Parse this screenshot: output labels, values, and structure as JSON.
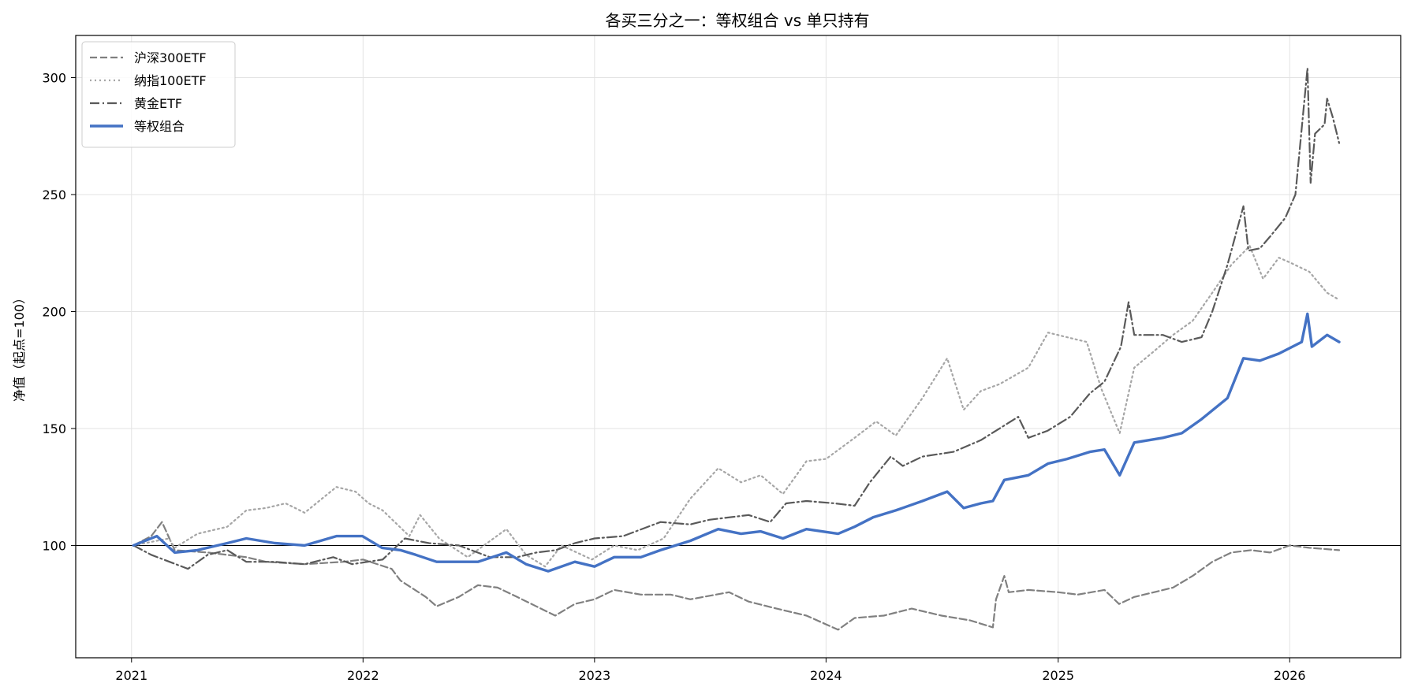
{
  "chart_data": {
    "type": "line",
    "title": "各买三分之一：等权组合 vs 单只持有",
    "ylabel": "净值（起点=100）",
    "xlabel": "",
    "xlim": [
      "2020-10-05",
      "2026-06-25"
    ],
    "ylim": [
      52,
      318
    ],
    "x_ticks": [
      "2021",
      "2022",
      "2023",
      "2024",
      "2025",
      "2026"
    ],
    "y_ticks": [
      100,
      150,
      200,
      250,
      300
    ],
    "grid": true,
    "baseline": 100,
    "legend": "top-left",
    "series": [
      {
        "name": "沪深300ETF",
        "color": "#808080",
        "style": "dashed",
        "points": [
          [
            "2021-01-04",
            100
          ],
          [
            "2021-02-01",
            104
          ],
          [
            "2021-02-18",
            110
          ],
          [
            "2021-03-10",
            98
          ],
          [
            "2021-05-01",
            97
          ],
          [
            "2021-07-01",
            95
          ],
          [
            "2021-08-01",
            93
          ],
          [
            "2021-10-01",
            92
          ],
          [
            "2021-12-01",
            93
          ],
          [
            "2022-01-01",
            94
          ],
          [
            "2022-02-15",
            90
          ],
          [
            "2022-03-01",
            85
          ],
          [
            "2022-04-10",
            78
          ],
          [
            "2022-04-27",
            74
          ],
          [
            "2022-06-01",
            78
          ],
          [
            "2022-07-01",
            83
          ],
          [
            "2022-08-01",
            82
          ],
          [
            "2022-09-01",
            78
          ],
          [
            "2022-10-01",
            74
          ],
          [
            "2022-10-31",
            70
          ],
          [
            "2022-12-01",
            75
          ],
          [
            "2023-01-01",
            77
          ],
          [
            "2023-02-01",
            81
          ],
          [
            "2023-03-15",
            79
          ],
          [
            "2023-05-01",
            79
          ],
          [
            "2023-06-01",
            77
          ],
          [
            "2023-08-01",
            80
          ],
          [
            "2023-09-01",
            76
          ],
          [
            "2023-10-15",
            73
          ],
          [
            "2023-12-01",
            70
          ],
          [
            "2024-01-20",
            64
          ],
          [
            "2024-02-15",
            69
          ],
          [
            "2024-04-01",
            70
          ],
          [
            "2024-05-15",
            73
          ],
          [
            "2024-07-01",
            70
          ],
          [
            "2024-08-15",
            68
          ],
          [
            "2024-09-20",
            65
          ],
          [
            "2024-09-25",
            77
          ],
          [
            "2024-10-08",
            87
          ],
          [
            "2024-10-15",
            80
          ],
          [
            "2024-11-15",
            81
          ],
          [
            "2025-01-01",
            80
          ],
          [
            "2025-02-01",
            79
          ],
          [
            "2025-03-15",
            81
          ],
          [
            "2025-04-07",
            75
          ],
          [
            "2025-05-01",
            78
          ],
          [
            "2025-06-01",
            80
          ],
          [
            "2025-07-01",
            82
          ],
          [
            "2025-08-01",
            87
          ],
          [
            "2025-09-01",
            93
          ],
          [
            "2025-10-01",
            97
          ],
          [
            "2025-11-01",
            98
          ],
          [
            "2025-12-01",
            97
          ],
          [
            "2026-01-01",
            100
          ],
          [
            "2026-02-01",
            99
          ],
          [
            "2026-03-20",
            98
          ]
        ]
      },
      {
        "name": "纳指100ETF",
        "color": "#a6a6a6",
        "style": "dotted",
        "points": [
          [
            "2021-01-04",
            100
          ],
          [
            "2021-03-01",
            103
          ],
          [
            "2021-03-10",
            99
          ],
          [
            "2021-04-15",
            105
          ],
          [
            "2021-06-01",
            108
          ],
          [
            "2021-07-01",
            115
          ],
          [
            "2021-08-01",
            116
          ],
          [
            "2021-09-01",
            118
          ],
          [
            "2021-10-01",
            114
          ],
          [
            "2021-11-20",
            125
          ],
          [
            "2021-12-20",
            123
          ],
          [
            "2022-01-10",
            118
          ],
          [
            "2022-02-01",
            115
          ],
          [
            "2022-03-15",
            104
          ],
          [
            "2022-04-01",
            113
          ],
          [
            "2022-05-01",
            103
          ],
          [
            "2022-06-15",
            95
          ],
          [
            "2022-08-15",
            107
          ],
          [
            "2022-09-15",
            96
          ],
          [
            "2022-10-15",
            91
          ],
          [
            "2022-11-10",
            100
          ],
          [
            "2022-12-28",
            94
          ],
          [
            "2023-02-01",
            100
          ],
          [
            "2023-03-10",
            98
          ],
          [
            "2023-04-20",
            103
          ],
          [
            "2023-06-01",
            120
          ],
          [
            "2023-07-15",
            133
          ],
          [
            "2023-08-20",
            127
          ],
          [
            "2023-09-20",
            130
          ],
          [
            "2023-10-25",
            122
          ],
          [
            "2023-12-01",
            136
          ],
          [
            "2024-01-01",
            137
          ],
          [
            "2024-02-15",
            146
          ],
          [
            "2024-03-20",
            153
          ],
          [
            "2024-04-20",
            147
          ],
          [
            "2024-06-01",
            163
          ],
          [
            "2024-07-10",
            180
          ],
          [
            "2024-08-05",
            158
          ],
          [
            "2024-09-01",
            166
          ],
          [
            "2024-10-01",
            169
          ],
          [
            "2024-11-15",
            176
          ],
          [
            "2024-12-16",
            191
          ],
          [
            "2025-01-15",
            189
          ],
          [
            "2025-02-15",
            187
          ],
          [
            "2025-03-10",
            167
          ],
          [
            "2025-04-08",
            148
          ],
          [
            "2025-05-01",
            176
          ],
          [
            "2025-06-01",
            183
          ],
          [
            "2025-07-01",
            190
          ],
          [
            "2025-08-01",
            196
          ],
          [
            "2025-09-01",
            208
          ],
          [
            "2025-10-01",
            220
          ],
          [
            "2025-10-30",
            228
          ],
          [
            "2025-11-20",
            214
          ],
          [
            "2025-12-15",
            223
          ],
          [
            "2026-01-01",
            221
          ],
          [
            "2026-02-01",
            217
          ],
          [
            "2026-03-01",
            208
          ],
          [
            "2026-03-20",
            205
          ]
        ]
      },
      {
        "name": "黄金ETF",
        "color": "#595959",
        "style": "dashdot",
        "points": [
          [
            "2021-01-04",
            100
          ],
          [
            "2021-02-01",
            96
          ],
          [
            "2021-03-31",
            90
          ],
          [
            "2021-05-01",
            96
          ],
          [
            "2021-06-01",
            98
          ],
          [
            "2021-07-01",
            93
          ],
          [
            "2021-08-15",
            93
          ],
          [
            "2021-10-01",
            92
          ],
          [
            "2021-11-15",
            95
          ],
          [
            "2021-12-15",
            92
          ],
          [
            "2022-02-01",
            94
          ],
          [
            "2022-03-08",
            103
          ],
          [
            "2022-04-15",
            101
          ],
          [
            "2022-06-01",
            100
          ],
          [
            "2022-07-20",
            95
          ],
          [
            "2022-09-01",
            95
          ],
          [
            "2022-10-01",
            97
          ],
          [
            "2022-11-01",
            98
          ],
          [
            "2022-12-01",
            101
          ],
          [
            "2023-01-01",
            103
          ],
          [
            "2023-02-15",
            104
          ],
          [
            "2023-04-15",
            110
          ],
          [
            "2023-06-01",
            109
          ],
          [
            "2023-07-01",
            111
          ],
          [
            "2023-09-01",
            113
          ],
          [
            "2023-10-05",
            110
          ],
          [
            "2023-10-30",
            118
          ],
          [
            "2023-12-01",
            119
          ],
          [
            "2024-01-15",
            118
          ],
          [
            "2024-02-15",
            117
          ],
          [
            "2024-03-10",
            127
          ],
          [
            "2024-04-12",
            138
          ],
          [
            "2024-05-01",
            134
          ],
          [
            "2024-06-01",
            138
          ],
          [
            "2024-07-20",
            140
          ],
          [
            "2024-09-01",
            145
          ],
          [
            "2024-10-30",
            155
          ],
          [
            "2024-11-15",
            146
          ],
          [
            "2024-12-15",
            149
          ],
          [
            "2025-01-20",
            155
          ],
          [
            "2025-02-20",
            165
          ],
          [
            "2025-03-15",
            170
          ],
          [
            "2025-04-10",
            185
          ],
          [
            "2025-04-22",
            204
          ],
          [
            "2025-05-01",
            190
          ],
          [
            "2025-06-15",
            190
          ],
          [
            "2025-07-15",
            187
          ],
          [
            "2025-08-15",
            189
          ],
          [
            "2025-09-01",
            200
          ],
          [
            "2025-09-25",
            220
          ],
          [
            "2025-10-20",
            245
          ],
          [
            "2025-10-28",
            226
          ],
          [
            "2025-11-15",
            227
          ],
          [
            "2025-12-01",
            232
          ],
          [
            "2025-12-25",
            240
          ],
          [
            "2026-01-10",
            250
          ],
          [
            "2026-01-29",
            304
          ],
          [
            "2026-02-03",
            255
          ],
          [
            "2026-02-10",
            276
          ],
          [
            "2026-02-25",
            280
          ],
          [
            "2026-03-01",
            291
          ],
          [
            "2026-03-10",
            283
          ],
          [
            "2026-03-20",
            272
          ]
        ]
      },
      {
        "name": "等权组合",
        "color": "#4472c4",
        "style": "solid",
        "width": 3.4,
        "points": [
          [
            "2021-01-04",
            100
          ],
          [
            "2021-02-10",
            104
          ],
          [
            "2021-03-10",
            97
          ],
          [
            "2021-04-15",
            98
          ],
          [
            "2021-06-01",
            101
          ],
          [
            "2021-07-01",
            103
          ],
          [
            "2021-08-15",
            101
          ],
          [
            "2021-10-01",
            100
          ],
          [
            "2021-11-20",
            104
          ],
          [
            "2021-12-31",
            104
          ],
          [
            "2022-01-31",
            99
          ],
          [
            "2022-03-01",
            98
          ],
          [
            "2022-03-25",
            96
          ],
          [
            "2022-04-27",
            93
          ],
          [
            "2022-06-01",
            93
          ],
          [
            "2022-07-01",
            93
          ],
          [
            "2022-08-15",
            97
          ],
          [
            "2022-09-15",
            92
          ],
          [
            "2022-10-20",
            89
          ],
          [
            "2022-12-01",
            93
          ],
          [
            "2023-01-01",
            91
          ],
          [
            "2023-02-01",
            95
          ],
          [
            "2023-03-15",
            95
          ],
          [
            "2023-04-15",
            98
          ],
          [
            "2023-06-01",
            102
          ],
          [
            "2023-07-15",
            107
          ],
          [
            "2023-08-20",
            105
          ],
          [
            "2023-09-20",
            106
          ],
          [
            "2023-10-25",
            103
          ],
          [
            "2023-12-01",
            107
          ],
          [
            "2024-01-20",
            105
          ],
          [
            "2024-02-15",
            108
          ],
          [
            "2024-03-15",
            112
          ],
          [
            "2024-04-20",
            115
          ],
          [
            "2024-06-01",
            119
          ],
          [
            "2024-07-10",
            123
          ],
          [
            "2024-08-05",
            116
          ],
          [
            "2024-09-01",
            118
          ],
          [
            "2024-09-20",
            119
          ],
          [
            "2024-10-08",
            128
          ],
          [
            "2024-11-15",
            130
          ],
          [
            "2024-12-16",
            135
          ],
          [
            "2025-01-15",
            137
          ],
          [
            "2025-02-20",
            140
          ],
          [
            "2025-03-15",
            141
          ],
          [
            "2025-04-08",
            130
          ],
          [
            "2025-05-01",
            144
          ],
          [
            "2025-06-15",
            146
          ],
          [
            "2025-07-15",
            148
          ],
          [
            "2025-08-15",
            154
          ],
          [
            "2025-09-25",
            163
          ],
          [
            "2025-10-20",
            180
          ],
          [
            "2025-11-15",
            179
          ],
          [
            "2025-12-15",
            182
          ],
          [
            "2026-01-20",
            187
          ],
          [
            "2026-01-29",
            199
          ],
          [
            "2026-02-05",
            185
          ],
          [
            "2026-03-01",
            190
          ],
          [
            "2026-03-20",
            187
          ]
        ]
      }
    ]
  }
}
